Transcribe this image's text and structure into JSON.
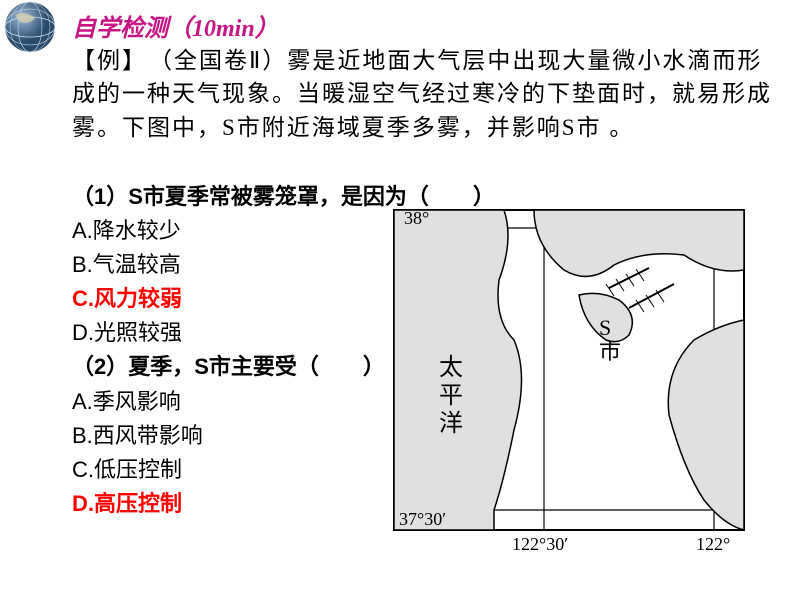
{
  "title": {
    "text": "自学检测（10min）",
    "color": "#c71585"
  },
  "passage": {
    "text": "【例】　（全国卷Ⅱ）雾是近地面大气层中出现大量微小水滴而形成的一种天气现象。当暖湿空气经过寒冷的下垫面时，就易形成雾。下图中，S市附近海域夏季多雾，并影响S市 。",
    "color": "#000000"
  },
  "q1": {
    "stem": "（1）S市夏季常被雾笼罩，是因为（　　）",
    "options": {
      "A": "A.降水较少",
      "B": "B.气温较高",
      "C": "C.风力较弱",
      "D": "D.光照较强"
    },
    "answer_key": "C"
  },
  "q2": {
    "stem": "（2）夏季，S市主要受（　　）",
    "options": {
      "A": "A.季风影响",
      "B": "B.西风带影响",
      "C": "C.低压控制",
      "D": "D.高压控制"
    },
    "answer_key": "D"
  },
  "map": {
    "frame_color": "#000000",
    "lat_labels": [
      "38°",
      "37°30′"
    ],
    "lon_labels": [
      "122°30′",
      "122°"
    ],
    "ocean_label": "太平洋",
    "city_label": "S市",
    "land_fill": "#e0e0e0",
    "sea_fill": "#ffffff",
    "lat_positions": [
      28,
      310
    ],
    "lon_positions": [
      160,
      330
    ]
  }
}
